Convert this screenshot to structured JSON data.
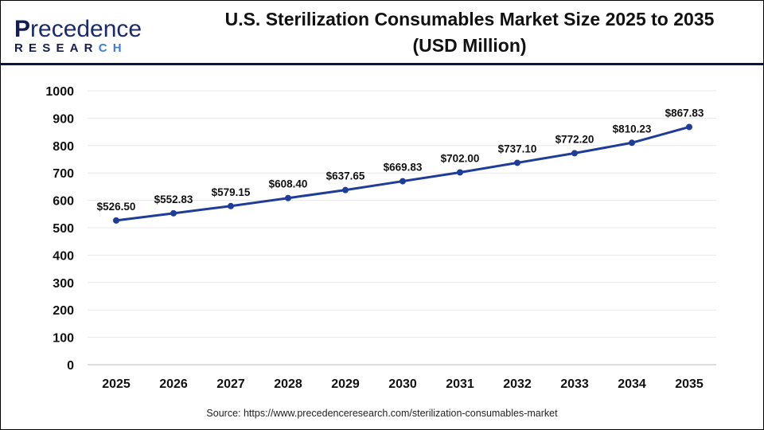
{
  "logo": {
    "line1_first": "P",
    "line1_rest": "recedence",
    "line2_main": "RESEAR",
    "line2_accent": "CH"
  },
  "header": {
    "title_line1": "U.S. Sterilization Consumables Market Size 2025 to 2035",
    "title_line2": "(USD Million)"
  },
  "source": "Source: https://www.precedenceresearch.com/sterilization-consumables-market",
  "chart_data": {
    "type": "line",
    "title": "U.S. Sterilization Consumables Market Size 2025 to 2035 (USD Million)",
    "categories": [
      "2025",
      "2026",
      "2027",
      "2028",
      "2029",
      "2030",
      "2031",
      "2032",
      "2033",
      "2034",
      "2035"
    ],
    "values": [
      526.5,
      552.83,
      579.15,
      608.4,
      637.65,
      669.83,
      702.0,
      737.1,
      772.2,
      810.23,
      867.83
    ],
    "data_labels": [
      "$526.50",
      "$552.83",
      "$579.15",
      "$608.40",
      "$637.65",
      "$669.83",
      "$702.00",
      "$737.10",
      "$772.20",
      "$810.23",
      "$867.83"
    ],
    "yticks": [
      0,
      100,
      200,
      300,
      400,
      500,
      600,
      700,
      800,
      900,
      1000
    ],
    "ylim": [
      0,
      1000
    ],
    "grid": true,
    "line_color": "#1f3c99"
  }
}
